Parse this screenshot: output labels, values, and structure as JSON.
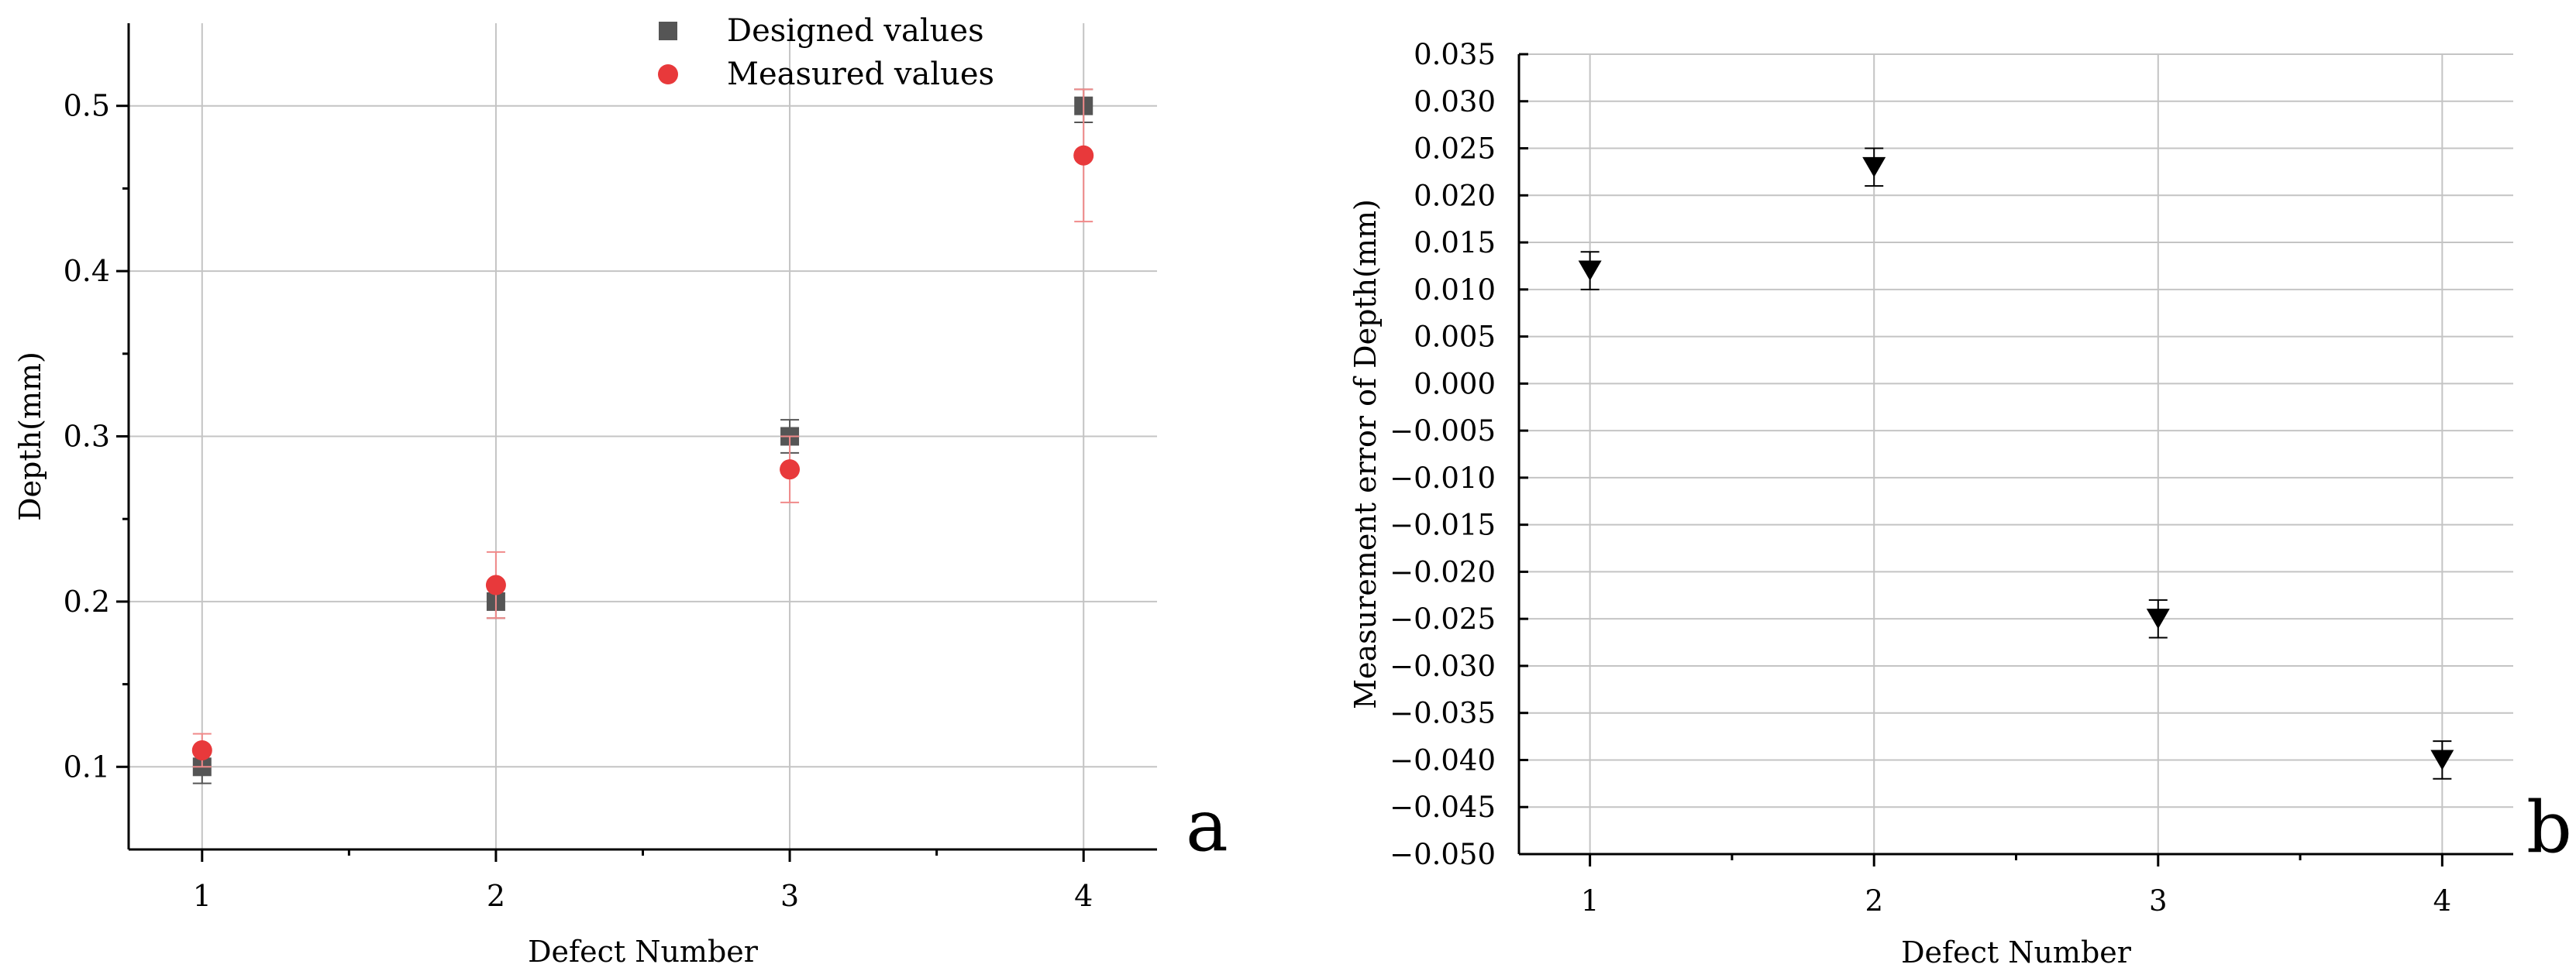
{
  "chart_data": [
    {
      "type": "scatter",
      "panel_label": "a",
      "xlabel": "Defect Number",
      "ylabel": "Depth(mm)",
      "xlim": [
        0.75,
        4.25
      ],
      "ylim": [
        0.05,
        0.55
      ],
      "xticks": [
        1,
        2,
        3,
        4
      ],
      "xtick_labels": [
        "1",
        "2",
        "3",
        "4"
      ],
      "yticks": [
        0.1,
        0.2,
        0.3,
        0.4,
        0.5
      ],
      "ytick_labels": [
        "0.1",
        "0.2",
        "0.3",
        "0.4",
        "0.5"
      ],
      "grid": true,
      "legend": "top",
      "series": [
        {
          "name": "Designed values",
          "marker": "square",
          "color": "#555555",
          "error_color": "#555555",
          "x": [
            1,
            2,
            3,
            4
          ],
          "y": [
            0.1,
            0.2,
            0.3,
            0.5
          ],
          "err": [
            0.01,
            0.01,
            0.01,
            0.01
          ]
        },
        {
          "name": "Measured values",
          "marker": "circle",
          "color": "#e8393b",
          "error_color": "#f08a8a",
          "x": [
            1,
            2,
            3,
            4
          ],
          "y": [
            0.11,
            0.21,
            0.28,
            0.47
          ],
          "err": [
            0.01,
            0.02,
            0.02,
            0.04
          ]
        }
      ]
    },
    {
      "type": "scatter",
      "panel_label": "b",
      "xlabel": "Defect Number",
      "ylabel": "Measurement error of Depth(mm)",
      "xlim": [
        0.75,
        4.25
      ],
      "ylim": [
        -0.05,
        0.035
      ],
      "xticks": [
        1,
        2,
        3,
        4
      ],
      "xtick_labels": [
        "1",
        "2",
        "3",
        "4"
      ],
      "yticks": [
        0.035,
        0.03,
        0.025,
        0.02,
        0.015,
        0.01,
        0.005,
        0.0,
        -0.005,
        -0.01,
        -0.015,
        -0.02,
        -0.025,
        -0.03,
        -0.035,
        -0.04,
        -0.045,
        -0.05
      ],
      "ytick_labels": [
        "0.035",
        "0.030",
        "0.025",
        "0.020",
        "0.015",
        "0.010",
        "0.005",
        "0.000",
        "−0.005",
        "−0.010",
        "−0.015",
        "−0.020",
        "−0.025",
        "−0.030",
        "−0.035",
        "−0.040",
        "−0.045",
        "−0.050"
      ],
      "grid": true,
      "series": [
        {
          "marker": "triangle-down",
          "color": "#000000",
          "error_color": "#000000",
          "x": [
            1,
            2,
            3,
            4
          ],
          "y": [
            0.012,
            0.023,
            -0.025,
            -0.04
          ],
          "err": [
            0.002,
            0.002,
            0.002,
            0.002
          ]
        }
      ]
    }
  ]
}
